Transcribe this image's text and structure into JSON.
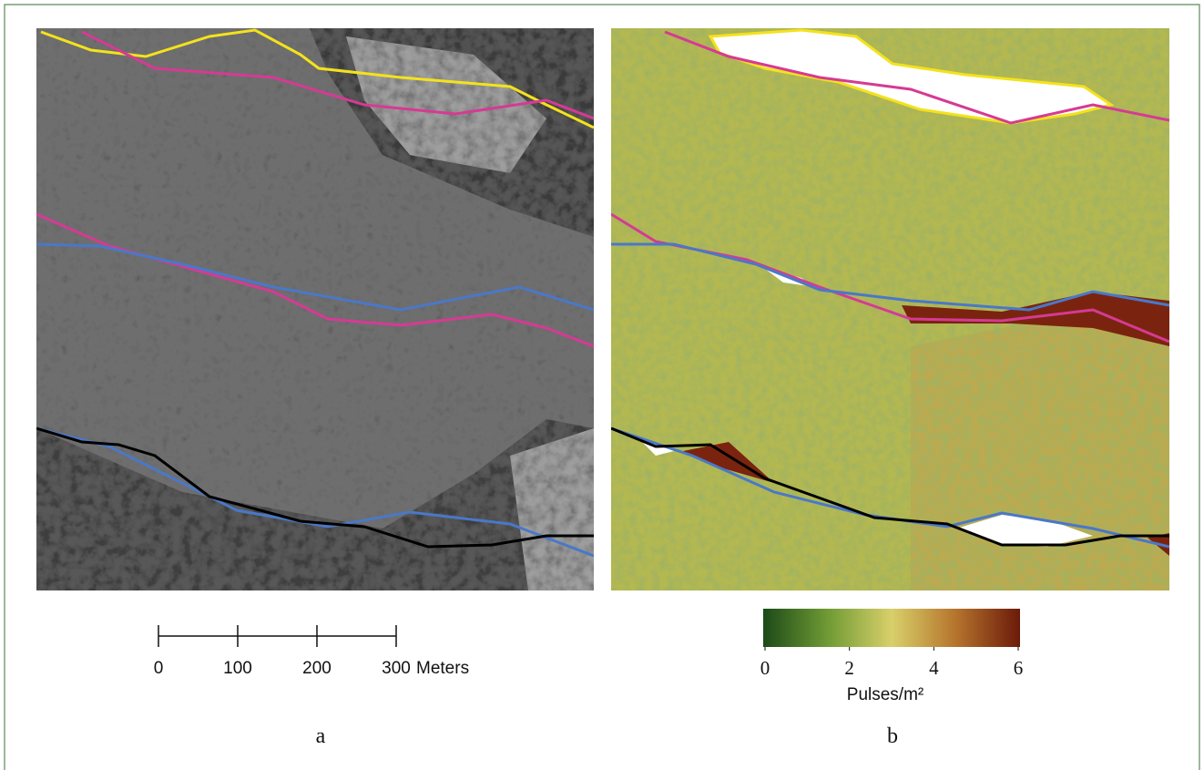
{
  "panels": [
    {
      "label": "a"
    },
    {
      "label": "b"
    }
  ],
  "scale_bar": {
    "ticks": [
      0,
      100,
      200,
      300
    ],
    "unit": "Meters"
  },
  "colorbar": {
    "label": "Pulses/m²",
    "range": [
      0,
      6
    ],
    "ticks": [
      0,
      2,
      4,
      6
    ],
    "colors": [
      "#1c4a18",
      "#6f9a34",
      "#d8d06a",
      "#b5742c",
      "#6b1a0a"
    ]
  }
}
